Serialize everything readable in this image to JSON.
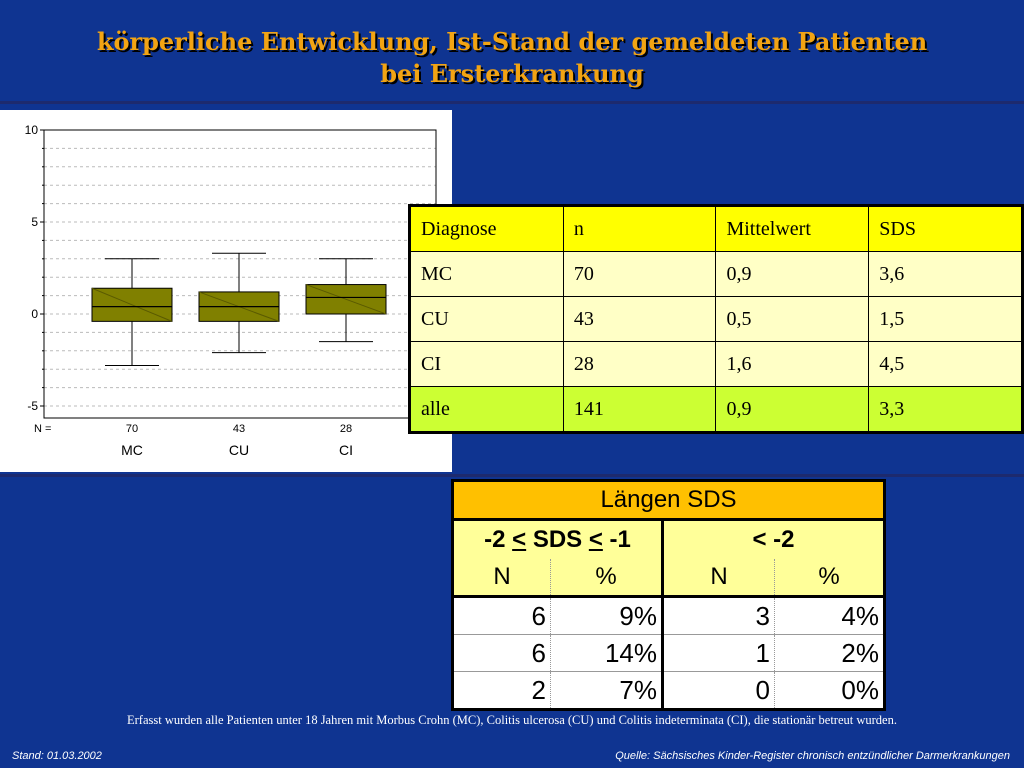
{
  "slide": {
    "title_line1": "körperliche Entwicklung, Ist-Stand der gemeldeten Patienten",
    "title_line2": "bei Ersterkrankung",
    "footnote": "Erfasst wurden alle Patienten unter 18 Jahren mit Morbus Crohn (MC), Colitis ulcerosa (CU) und Colitis indeterminata (CI), die stationär betreut wurden.",
    "date": "Stand: 01.03.2002",
    "source": "Quelle: Sächsisches Kinder-Register chronisch entzündlicher Darmerkrankungen"
  },
  "chart_data": {
    "type": "box",
    "n_label": "N =",
    "ylim": [
      -5,
      10
    ],
    "yticks": [
      "10",
      "5",
      "0",
      "-5"
    ],
    "categories": [
      "MC",
      "CU",
      "CI"
    ],
    "n": [
      "70",
      "43",
      "28"
    ],
    "boxes": [
      {
        "min": -2.8,
        "q1": -0.4,
        "median": 0.4,
        "q3": 1.4,
        "max": 3.0
      },
      {
        "min": -2.1,
        "q1": -0.4,
        "median": 0.4,
        "q3": 1.2,
        "max": 3.3
      },
      {
        "min": -1.5,
        "q1": 0.0,
        "median": 0.9,
        "q3": 1.6,
        "max": 3.0
      }
    ],
    "box_color": "#808000",
    "grid": true
  },
  "stats_table": {
    "headers": [
      "Diagnose",
      "n",
      "Mittelwert",
      "SDS"
    ],
    "rows": [
      [
        "MC",
        "70",
        "0,9",
        "3,6"
      ],
      [
        "CU",
        "43",
        "0,5",
        "1,5"
      ],
      [
        "CI",
        "28",
        "1,6",
        "4,5"
      ]
    ],
    "total": [
      "alle",
      "141",
      "0,9",
      "3,3"
    ]
  },
  "sds_table": {
    "title": "Längen SDS",
    "group1_a": "-2 ",
    "group1_le1": "<",
    "group1_b": " SDS ",
    "group1_le2": "<",
    "group1_c": " -1",
    "group2": "< -2",
    "sub": [
      "N",
      "%",
      "N",
      "%"
    ],
    "rows": [
      [
        "6",
        "9%",
        "3",
        "4%"
      ],
      [
        "6",
        "14%",
        "1",
        "2%"
      ],
      [
        "2",
        "7%",
        "0",
        "0%"
      ]
    ]
  }
}
